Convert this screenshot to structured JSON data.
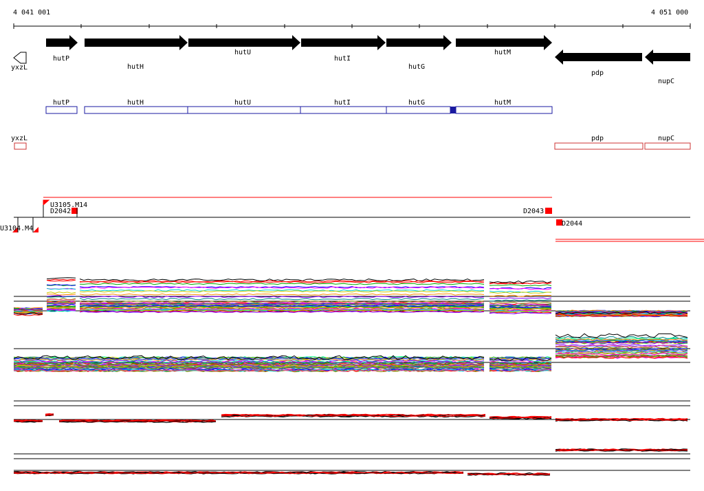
{
  "axis": {
    "start_label": "4 041 001",
    "end_label": "4 051 000"
  },
  "genes": [
    {
      "name": "yxzL",
      "strand": "-",
      "outline": true
    },
    {
      "name": "hutP",
      "strand": "+"
    },
    {
      "name": "hutH",
      "strand": "+"
    },
    {
      "name": "hutU",
      "strand": "+"
    },
    {
      "name": "hutI",
      "strand": "+"
    },
    {
      "name": "hutG",
      "strand": "+"
    },
    {
      "name": "hutM",
      "strand": "+"
    },
    {
      "name": "pdp",
      "strand": "-"
    },
    {
      "name": "nupC",
      "strand": "-"
    }
  ],
  "transcripts_forward": [
    "hutP",
    "hutH",
    "hutU",
    "hutI",
    "hutG",
    "hutM"
  ],
  "transcripts_reverse": [
    "yxzL",
    "pdp",
    "nupC"
  ],
  "probes": {
    "p1": "U3105.M14",
    "p2": "D2042",
    "p3": "U3104.M4",
    "p4": "D2043",
    "p5": "D2044"
  },
  "colors": {
    "forward_box": "#1a1aa0",
    "reverse_box": "#cc3333",
    "probe_red": "#ff0000",
    "arrow": "#000000"
  }
}
